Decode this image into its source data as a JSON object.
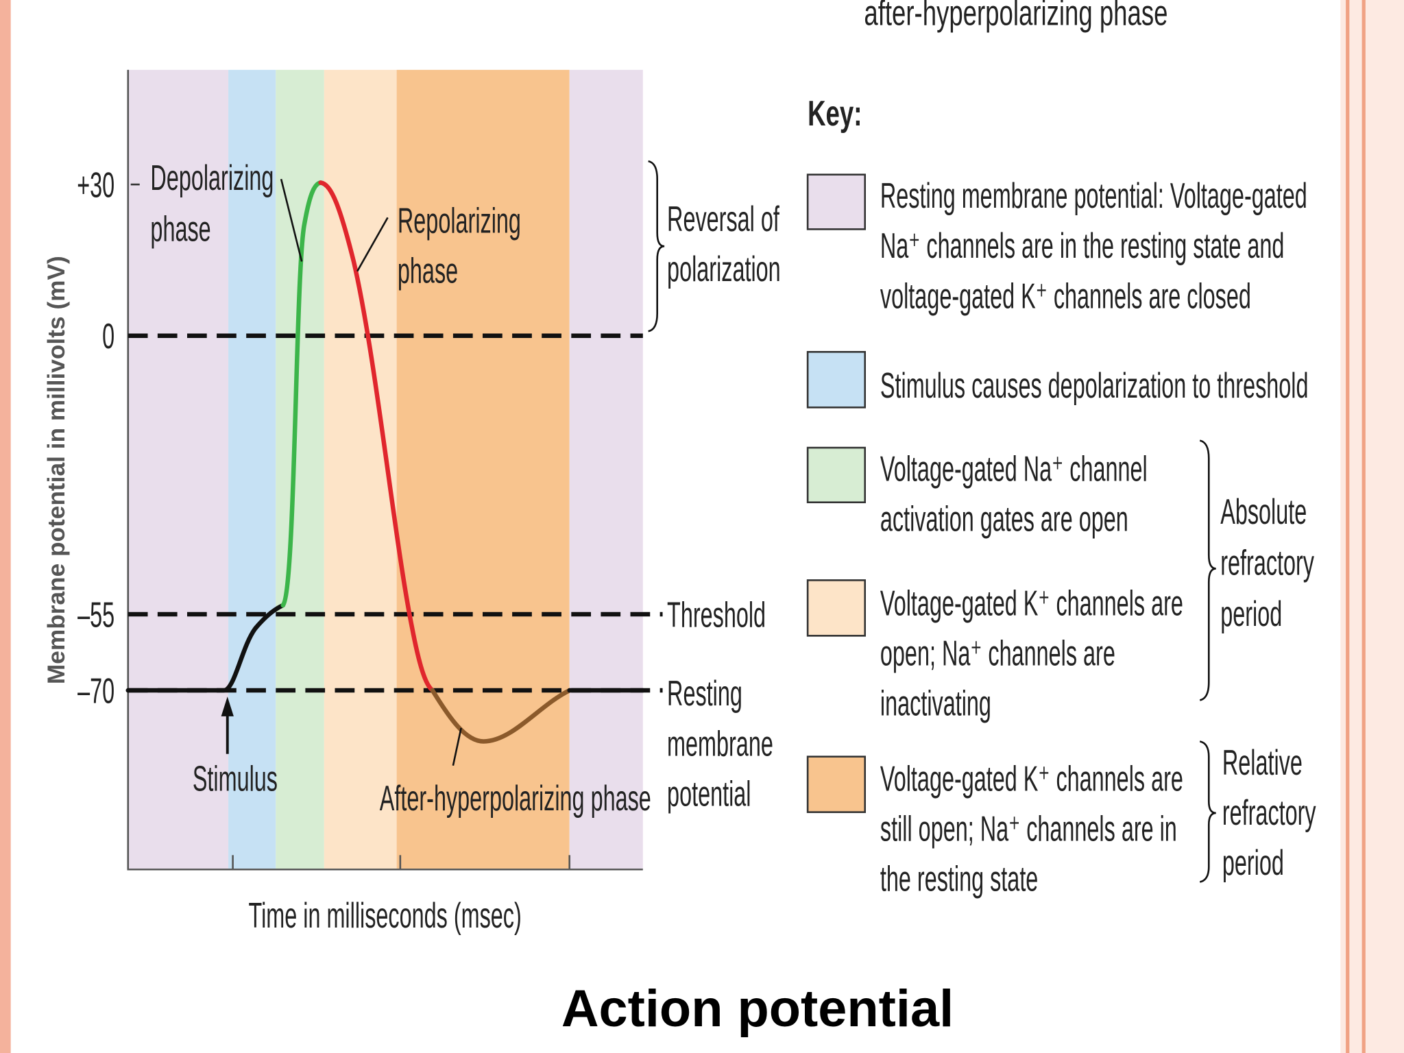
{
  "header": {
    "cut_text": "after-hyperpolarizing phase"
  },
  "diagram": {
    "y_axis_label": "Membrane potential in millivolts (mV)",
    "y_ticks": [
      "+30",
      "0",
      "–55",
      "–70"
    ],
    "x_axis_label": "Time in milliseconds (msec)",
    "annotations": {
      "depolarizing": [
        "Depolarizing",
        "phase"
      ],
      "repolarizing": [
        "Repolarizing",
        "phase"
      ],
      "reversal": [
        "Reversal of",
        "polarization"
      ],
      "threshold": [
        "Threshold"
      ],
      "resting": [
        "Resting",
        "membrane",
        "potential"
      ],
      "stimulus": [
        "Stimulus"
      ],
      "after_hyperpolarizing": [
        "After-hyperpolarizing phase"
      ]
    }
  },
  "key": {
    "title": "Key:",
    "items": [
      {
        "lines": [
          "Resting membrane potential: Voltage-gated",
          "Na⁺ channels are in the resting state and",
          "voltage-gated K⁺ channels are closed"
        ]
      },
      {
        "lines": [
          "Stimulus causes depolarization to threshold"
        ]
      },
      {
        "lines": [
          "Voltage-gated Na⁺ channel",
          "activation gates are open"
        ]
      },
      {
        "lines": [
          "Voltage-gated K⁺ channels are",
          "open; Na⁺ channels are",
          "inactivating"
        ]
      },
      {
        "lines": [
          "Voltage-gated K⁺ channels are",
          "still open; Na⁺ channels are in",
          "the resting state"
        ]
      }
    ],
    "absolute": [
      "Absolute",
      "refractory",
      "period"
    ],
    "relative": [
      "Relative",
      "refractory",
      "period"
    ]
  },
  "title": "Action potential"
}
